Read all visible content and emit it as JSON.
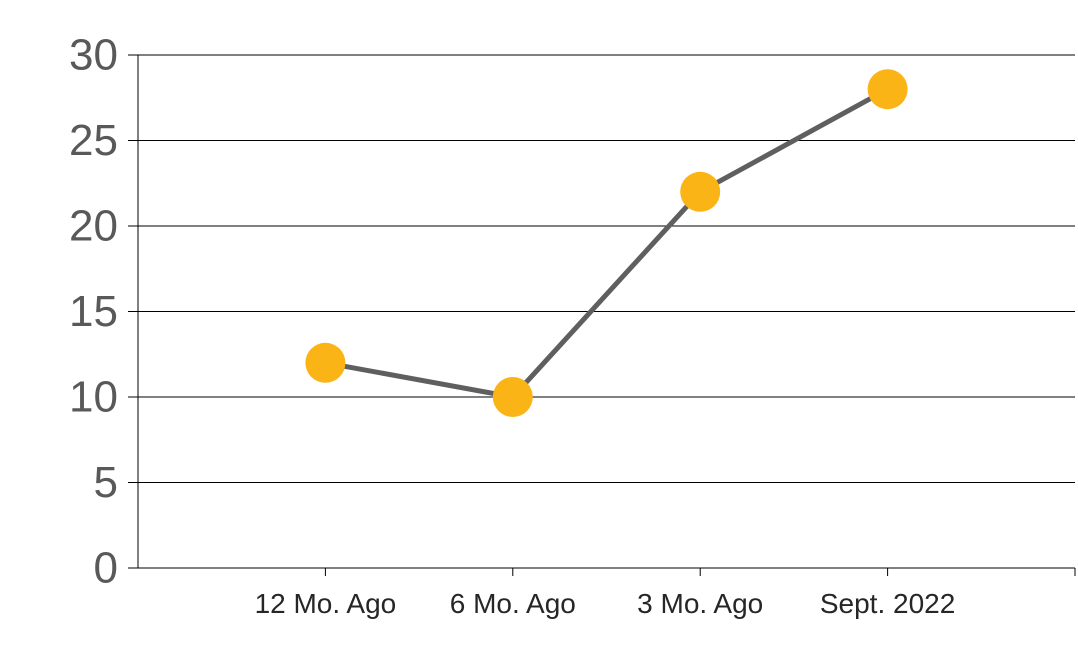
{
  "chart_data": {
    "type": "line",
    "categories": [
      "12 Mo. Ago",
      "6 Mo. Ago",
      "3 Mo. Ago",
      "Sept. 2022"
    ],
    "series": [
      {
        "values": [
          12,
          10,
          22,
          28
        ],
        "line_color": "#5f5f5f",
        "marker_color": "#fbb416"
      }
    ],
    "ylim": [
      0,
      30
    ],
    "yticks": [
      0,
      5,
      10,
      15,
      20,
      25,
      30
    ],
    "grid": true,
    "legend": "none",
    "title": "",
    "xlabel": "",
    "ylabel": ""
  }
}
